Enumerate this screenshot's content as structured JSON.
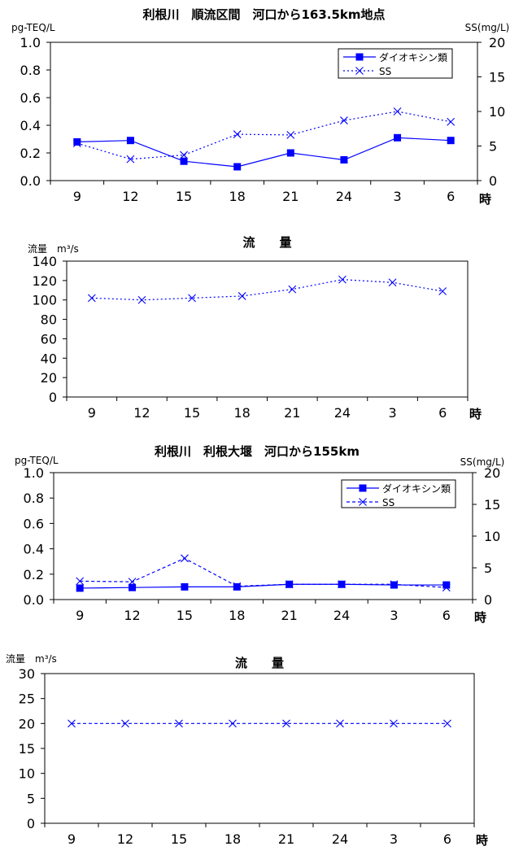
{
  "chart_data": [
    {
      "type": "line",
      "title": "利根川　順流区間　河口から163.5km地点",
      "ylabel_left": "pg-TEQ/L",
      "ylabel_right": "SS(mg/L)",
      "xunit": "時",
      "categories": [
        "9",
        "12",
        "15",
        "18",
        "21",
        "24",
        "3",
        "6"
      ],
      "ylim_left": [
        0,
        1.0
      ],
      "ylim_right": [
        0,
        20
      ],
      "yticks_left": [
        "0.0",
        "0.2",
        "0.4",
        "0.6",
        "0.8",
        "1.0"
      ],
      "yticks_right": [
        "0",
        "5",
        "10",
        "15",
        "20"
      ],
      "series": [
        {
          "name": "ダイオキシン類",
          "axis": "left",
          "style": "solid-square",
          "color": "#0000ff",
          "values": [
            0.28,
            0.29,
            0.14,
            0.1,
            0.2,
            0.15,
            0.31,
            0.29
          ]
        },
        {
          "name": "SS",
          "axis": "right",
          "style": "dotted-x",
          "color": "#0000ff",
          "values": [
            5.4,
            3.1,
            3.7,
            6.7,
            6.6,
            8.7,
            10.0,
            8.5
          ]
        }
      ],
      "legend": "top-right"
    },
    {
      "type": "line",
      "title": "流　　量",
      "ylabel_left": "流量　m³/s",
      "xunit": "時",
      "categories": [
        "9",
        "12",
        "15",
        "18",
        "21",
        "24",
        "3",
        "6"
      ],
      "ylim_left": [
        0,
        140
      ],
      "yticks_left": [
        "0",
        "20",
        "40",
        "60",
        "80",
        "100",
        "120",
        "140"
      ],
      "series": [
        {
          "name": "流量",
          "axis": "left",
          "style": "dotted-x",
          "color": "#0000ff",
          "values": [
            102,
            100,
            102,
            104,
            111,
            121,
            118,
            109
          ]
        }
      ]
    },
    {
      "type": "line",
      "title": "利根川　利根大堰　河口から155km　",
      "ylabel_left": "pg-TEQ/L",
      "ylabel_right": "SS(mg/L)",
      "xunit": "時",
      "categories": [
        "9",
        "12",
        "15",
        "18",
        "21",
        "24",
        "3",
        "6"
      ],
      "ylim_left": [
        0,
        1.0
      ],
      "ylim_right": [
        0,
        20
      ],
      "yticks_left": [
        "0.0",
        "0.2",
        "0.4",
        "0.6",
        "0.8",
        "1.0"
      ],
      "yticks_right": [
        "0",
        "5",
        "10",
        "15",
        "20"
      ],
      "series": [
        {
          "name": "ダイオキシン類",
          "axis": "left",
          "style": "solid-square",
          "color": "#0000ff",
          "values": [
            0.09,
            0.095,
            0.1,
            0.1,
            0.12,
            0.12,
            0.115,
            0.115
          ]
        },
        {
          "name": "SS",
          "axis": "right",
          "style": "dashed-x",
          "color": "#0000ff",
          "values": [
            2.9,
            2.8,
            6.5,
            2.1,
            2.4,
            2.4,
            2.4,
            1.9
          ]
        }
      ],
      "legend": "top-right"
    },
    {
      "type": "line",
      "title": "流　　量",
      "ylabel_left": "流量　m³/s",
      "xunit": "時",
      "categories": [
        "9",
        "12",
        "15",
        "18",
        "21",
        "24",
        "3",
        "6"
      ],
      "ylim_left": [
        0,
        30
      ],
      "yticks_left": [
        "0",
        "5",
        "10",
        "15",
        "20",
        "25",
        "30"
      ],
      "series": [
        {
          "name": "流量",
          "axis": "left",
          "style": "dashed-x",
          "color": "#0000ff",
          "values": [
            20,
            20,
            20,
            20,
            20,
            20,
            20,
            20
          ]
        }
      ]
    }
  ]
}
